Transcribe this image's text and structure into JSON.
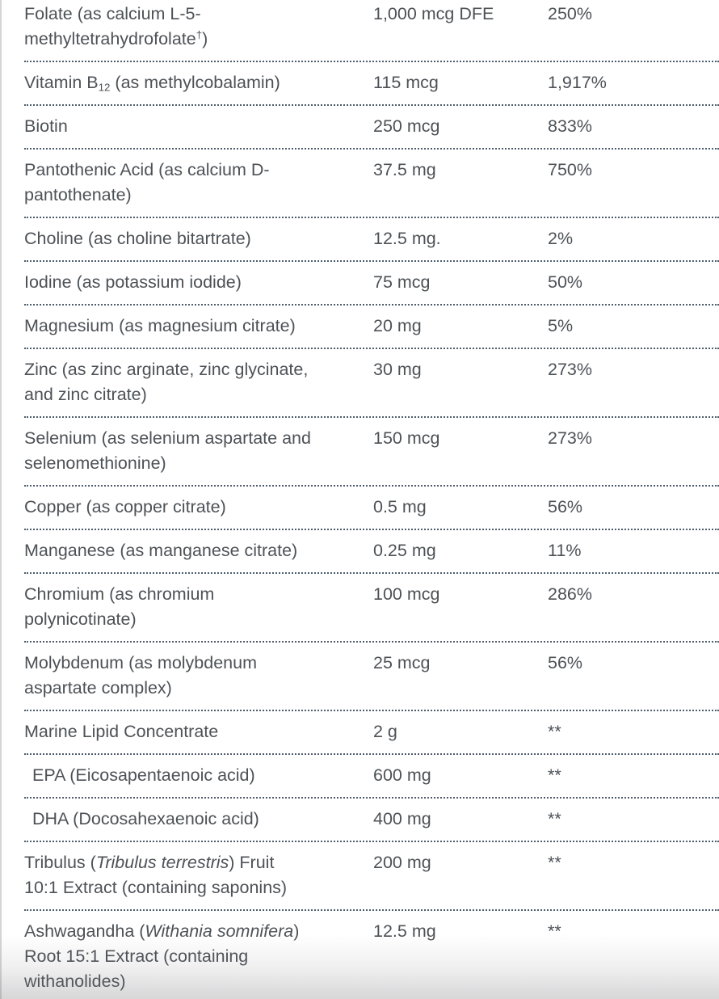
{
  "colors": {
    "text": "#4d5257",
    "divider": "#4e5d6b",
    "left_border": "#d3d5d6",
    "background": "#ffffff"
  },
  "table": {
    "columns": [
      "nutrient",
      "amount_per_serving",
      "percent_daily_value"
    ],
    "rows": [
      {
        "name": [
          {
            "t": "Folate (as calcium L-5-"
          },
          {
            "br": true
          },
          {
            "t": "methyltetrahydrofolate"
          },
          {
            "t": "†",
            "style": "sup"
          },
          {
            "t": ")"
          }
        ],
        "amount": "1,000 mcg DFE",
        "dv": "250%"
      },
      {
        "name": [
          {
            "t": "Vitamin B"
          },
          {
            "t": "12",
            "style": "sub"
          },
          {
            "t": " (as methylcobalamin)"
          }
        ],
        "amount": "115 mcg",
        "dv": "1,917%"
      },
      {
        "name": [
          {
            "t": "Biotin"
          }
        ],
        "amount": "250 mcg",
        "dv": "833%"
      },
      {
        "name": [
          {
            "t": "Pantothenic Acid (as calcium D-"
          },
          {
            "br": true
          },
          {
            "t": "pantothenate)"
          }
        ],
        "amount": "37.5 mg",
        "dv": "750%"
      },
      {
        "name": [
          {
            "t": "Choline (as choline bitartrate)"
          }
        ],
        "amount": "12.5 mg.",
        "dv": "2%"
      },
      {
        "name": [
          {
            "t": "Iodine (as potassium iodide)"
          }
        ],
        "amount": "75 mcg",
        "dv": "50%"
      },
      {
        "name": [
          {
            "t": "Magnesium (as magnesium citrate)"
          }
        ],
        "amount": "20 mg",
        "dv": "5%"
      },
      {
        "name": [
          {
            "t": "Zinc (as zinc arginate, zinc glycinate,"
          },
          {
            "br": true
          },
          {
            "t": "and zinc citrate)"
          }
        ],
        "amount": "30 mg",
        "dv": "273%"
      },
      {
        "name": [
          {
            "t": "Selenium (as selenium aspartate and"
          },
          {
            "br": true
          },
          {
            "t": "selenomethionine)"
          }
        ],
        "amount": "150 mcg",
        "dv": "273%"
      },
      {
        "name": [
          {
            "t": "Copper (as copper citrate)"
          }
        ],
        "amount": "0.5 mg",
        "dv": "56%"
      },
      {
        "name": [
          {
            "t": "Manganese (as manganese citrate)"
          }
        ],
        "amount": "0.25 mg",
        "dv": "11%"
      },
      {
        "name": [
          {
            "t": "Chromium (as chromium"
          },
          {
            "br": true
          },
          {
            "t": "polynicotinate)"
          }
        ],
        "amount": "100 mcg",
        "dv": "286%"
      },
      {
        "name": [
          {
            "t": "Molybdenum (as molybdenum"
          },
          {
            "br": true
          },
          {
            "t": "aspartate complex)"
          }
        ],
        "amount": "25 mcg",
        "dv": "56%"
      },
      {
        "name": [
          {
            "t": "Marine Lipid Concentrate"
          }
        ],
        "amount": "2 g",
        "dv": "**"
      },
      {
        "name": [
          {
            "t": "EPA (Eicosapentaenoic acid)"
          }
        ],
        "amount": "600 mg",
        "dv": "**",
        "indent": true
      },
      {
        "name": [
          {
            "t": "DHA (Docosahexaenoic acid)"
          }
        ],
        "amount": "400 mg",
        "dv": "**",
        "indent": true
      },
      {
        "name": [
          {
            "t": "Tribulus ("
          },
          {
            "t": "Tribulus terrestris",
            "style": "italic"
          },
          {
            "t": ") Fruit"
          },
          {
            "br": true
          },
          {
            "t": "10:1 Extract (containing saponins)"
          }
        ],
        "amount": "200 mg",
        "dv": "**"
      },
      {
        "name": [
          {
            "t": "Ashwagandha ("
          },
          {
            "t": "Withania somnifera",
            "style": "italic"
          },
          {
            "t": ")"
          },
          {
            "br": true
          },
          {
            "t": "Root 15:1 Extract (containing"
          },
          {
            "br": true
          },
          {
            "t": "withanolides)"
          }
        ],
        "amount": "12.5 mg",
        "dv": "**"
      }
    ]
  }
}
